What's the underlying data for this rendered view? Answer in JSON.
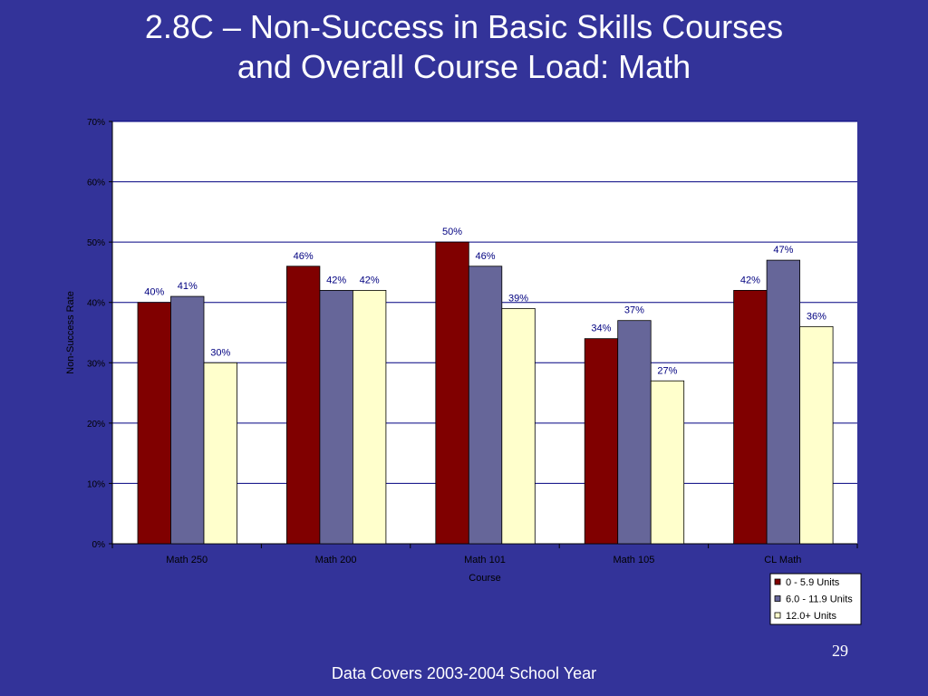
{
  "slide": {
    "title_line1": "2.8C – Non-Success in Basic Skills Courses",
    "title_line2": "and Overall Course Load: Math",
    "page_number": "29",
    "footer_note": "Data Covers 2003-2004 School Year"
  },
  "chart_data": {
    "type": "bar",
    "title": "",
    "xlabel": "Course",
    "ylabel": "Non-Success Rate",
    "ylim": [
      0,
      70
    ],
    "yticks": [
      "0%",
      "10%",
      "20%",
      "30%",
      "40%",
      "50%",
      "60%",
      "70%"
    ],
    "grid": true,
    "legend_position": "bottom-right",
    "categories": [
      "Math 250",
      "Math 200",
      "Math 101",
      "Math 105",
      "CL Math"
    ],
    "series": [
      {
        "name": "0 - 5.9 Units",
        "color": "#800000",
        "values": [
          40,
          46,
          50,
          34,
          42
        ],
        "labels": [
          "40%",
          "46%",
          "50%",
          "34%",
          "42%"
        ]
      },
      {
        "name": "6.0 - 11.9 Units",
        "color": "#666699",
        "values": [
          41,
          42,
          46,
          37,
          47
        ],
        "labels": [
          "41%",
          "42%",
          "46%",
          "37%",
          "47%"
        ]
      },
      {
        "name": "12.0+ Units",
        "color": "#ffffcc",
        "values": [
          30,
          42,
          39,
          27,
          36
        ],
        "labels": [
          "30%",
          "42%",
          "39%",
          "27%",
          "36%"
        ]
      }
    ],
    "colors": {
      "plot_background": "#ffffff",
      "gridline": "#000080",
      "label_text": "#000080"
    }
  }
}
